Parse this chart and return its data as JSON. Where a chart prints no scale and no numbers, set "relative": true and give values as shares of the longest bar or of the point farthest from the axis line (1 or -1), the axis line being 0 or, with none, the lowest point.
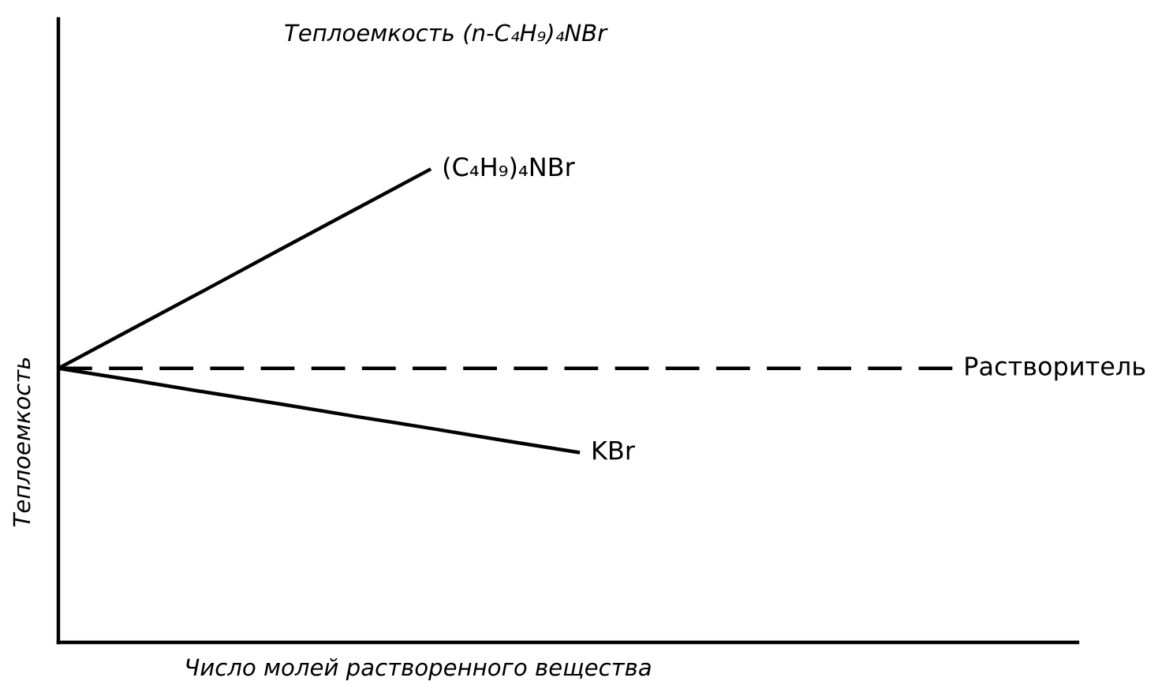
{
  "chart_data": {
    "type": "line",
    "title": "Теплоемкость (n-C₄H₉)₄NBr",
    "xlabel": "Число молей растворенного вещества",
    "ylabel": "Теплоемкость",
    "relative": true,
    "line_style": "solid",
    "categories": [
      null,
      null,
      null,
      null,
      null,
      null,
      null,
      null,
      null,
      null,
      null,
      null,
      null
    ],
    "series": [
      {
        "name": "(C₄H₉)₄NBr",
        "color": "#000000",
        "values": [
          0.579,
          0.663,
          0.747,
          0.832,
          0.916,
          1.0,
          null,
          null,
          null,
          null,
          null,
          null,
          null
        ]
      },
      {
        "name": "Растворитель",
        "color": "#000000",
        "line_style": "dashed",
        "values": [
          0.579,
          0.579,
          0.579,
          0.579,
          0.579,
          0.579,
          0.579,
          0.579,
          0.579,
          0.579,
          0.579,
          0.579,
          0.579
        ]
      },
      {
        "name": "KBr",
        "color": "#000000",
        "values": [
          0.579,
          0.554,
          0.528,
          0.503,
          0.477,
          0.452,
          0.426,
          0.401,
          null,
          null,
          null,
          null,
          null
        ]
      }
    ]
  }
}
